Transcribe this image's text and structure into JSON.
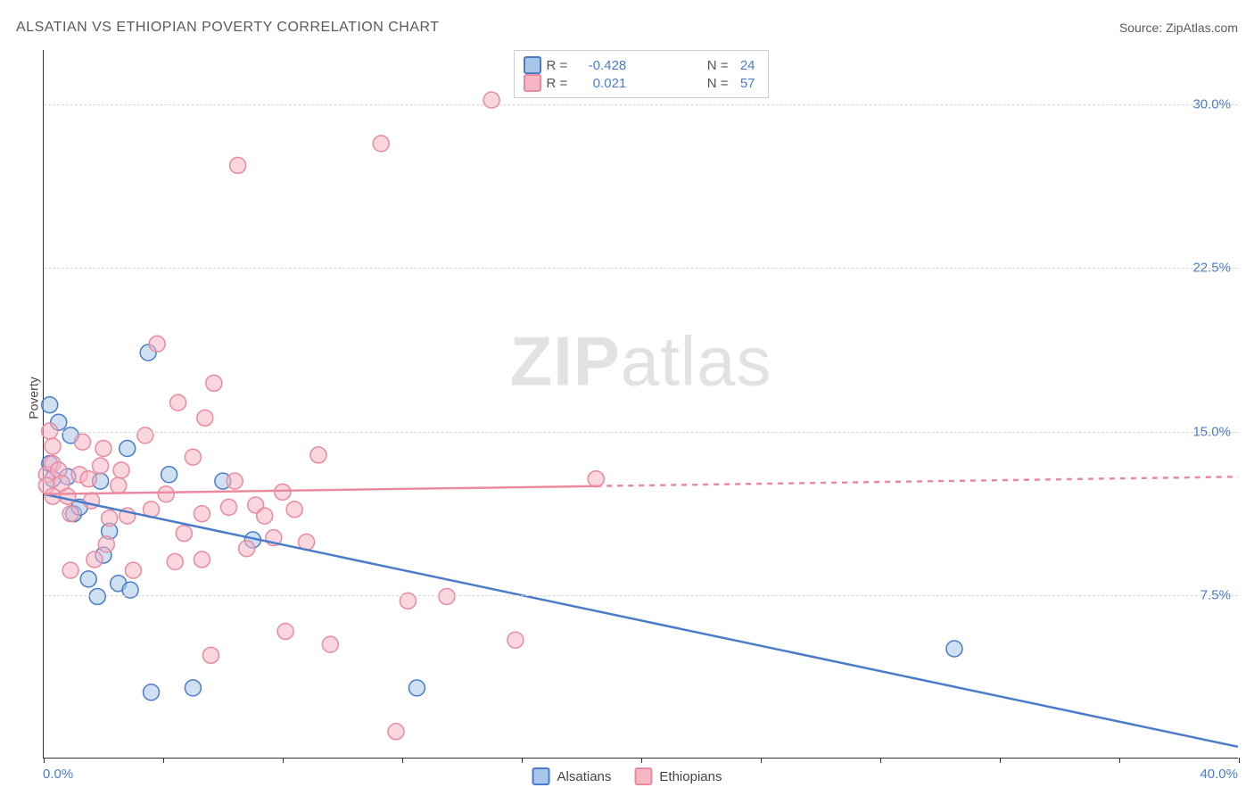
{
  "title": "ALSATIAN VS ETHIOPIAN POVERTY CORRELATION CHART",
  "source": {
    "label": "Source:",
    "value": "ZipAtlas.com"
  },
  "y_axis_label": "Poverty",
  "watermark": {
    "bold": "ZIP",
    "rest": "atlas"
  },
  "chart": {
    "type": "scatter",
    "background_color": "#ffffff",
    "grid_color": "#d8d8d8",
    "axis_color": "#333333",
    "xlim": [
      0,
      40
    ],
    "ylim": [
      0,
      32.5
    ],
    "x_ticks": [
      0,
      4,
      8,
      12,
      16,
      20,
      24,
      28,
      32,
      36,
      40
    ],
    "x_start_label": "0.0%",
    "x_end_label": "40.0%",
    "y_gridlines": [
      {
        "value": 7.5,
        "label": "7.5%"
      },
      {
        "value": 15.0,
        "label": "15.0%"
      },
      {
        "value": 22.5,
        "label": "22.5%"
      },
      {
        "value": 30.0,
        "label": "30.0%"
      }
    ],
    "y_label_color": "#4a7cc9",
    "marker_radius": 9,
    "marker_stroke_width": 1.5,
    "series": [
      {
        "name": "Alsatians",
        "fill": "#a8c6ea",
        "fill_opacity": 0.55,
        "stroke": "#4a7cc9",
        "r": -0.428,
        "n": 24,
        "points": [
          [
            0.2,
            16.2
          ],
          [
            0.2,
            13.5
          ],
          [
            0.3,
            12.8
          ],
          [
            0.5,
            15.4
          ],
          [
            0.8,
            12.9
          ],
          [
            0.9,
            14.8
          ],
          [
            1.0,
            11.2
          ],
          [
            1.2,
            11.5
          ],
          [
            1.5,
            8.2
          ],
          [
            1.8,
            7.4
          ],
          [
            1.9,
            12.7
          ],
          [
            2.0,
            9.3
          ],
          [
            2.2,
            10.4
          ],
          [
            2.5,
            8.0
          ],
          [
            2.9,
            7.7
          ],
          [
            2.8,
            14.2
          ],
          [
            3.5,
            18.6
          ],
          [
            3.6,
            3.0
          ],
          [
            4.2,
            13.0
          ],
          [
            5.0,
            3.2
          ],
          [
            6.0,
            12.7
          ],
          [
            7.0,
            10.0
          ],
          [
            12.5,
            3.2
          ],
          [
            30.5,
            5.0
          ]
        ],
        "trend": {
          "y_at_x0": 12.1,
          "y_at_xmax": 0.5,
          "solid_until_x": 40,
          "line_width": 2.5
        }
      },
      {
        "name": "Ethiopians",
        "fill": "#f6b6c4",
        "fill_opacity": 0.55,
        "stroke": "#e98aa0",
        "r": 0.021,
        "n": 57,
        "points": [
          [
            0.1,
            13.0
          ],
          [
            0.1,
            12.5
          ],
          [
            0.2,
            15.0
          ],
          [
            0.3,
            14.3
          ],
          [
            0.3,
            13.5
          ],
          [
            0.3,
            12.0
          ],
          [
            0.5,
            13.2
          ],
          [
            0.6,
            12.6
          ],
          [
            0.8,
            12.0
          ],
          [
            0.9,
            11.2
          ],
          [
            0.9,
            8.6
          ],
          [
            1.2,
            13.0
          ],
          [
            1.3,
            14.5
          ],
          [
            1.5,
            12.8
          ],
          [
            1.6,
            11.8
          ],
          [
            1.7,
            9.1
          ],
          [
            1.9,
            13.4
          ],
          [
            2.0,
            14.2
          ],
          [
            2.1,
            9.8
          ],
          [
            2.2,
            11.0
          ],
          [
            2.5,
            12.5
          ],
          [
            2.6,
            13.2
          ],
          [
            2.8,
            11.1
          ],
          [
            3.0,
            8.6
          ],
          [
            3.4,
            14.8
          ],
          [
            3.6,
            11.4
          ],
          [
            3.8,
            19.0
          ],
          [
            4.1,
            12.1
          ],
          [
            4.4,
            9.0
          ],
          [
            4.5,
            16.3
          ],
          [
            4.7,
            10.3
          ],
          [
            5.0,
            13.8
          ],
          [
            5.3,
            11.2
          ],
          [
            5.3,
            9.1
          ],
          [
            5.4,
            15.6
          ],
          [
            5.6,
            4.7
          ],
          [
            5.7,
            17.2
          ],
          [
            6.2,
            11.5
          ],
          [
            6.4,
            12.7
          ],
          [
            6.5,
            27.2
          ],
          [
            6.8,
            9.6
          ],
          [
            7.1,
            11.6
          ],
          [
            7.4,
            11.1
          ],
          [
            7.7,
            10.1
          ],
          [
            8.0,
            12.2
          ],
          [
            8.1,
            5.8
          ],
          [
            8.4,
            11.4
          ],
          [
            8.8,
            9.9
          ],
          [
            9.2,
            13.9
          ],
          [
            9.6,
            5.2
          ],
          [
            11.3,
            28.2
          ],
          [
            11.8,
            1.2
          ],
          [
            12.2,
            7.2
          ],
          [
            13.5,
            7.4
          ],
          [
            15.0,
            30.2
          ],
          [
            15.8,
            5.4
          ],
          [
            18.5,
            12.8
          ]
        ],
        "trend": {
          "y_at_x0": 12.1,
          "y_at_xmax": 12.9,
          "solid_until_x": 18.5,
          "line_width": 2.5
        }
      }
    ],
    "legend_top": {
      "r_label": "R =",
      "n_label": "N ="
    }
  }
}
